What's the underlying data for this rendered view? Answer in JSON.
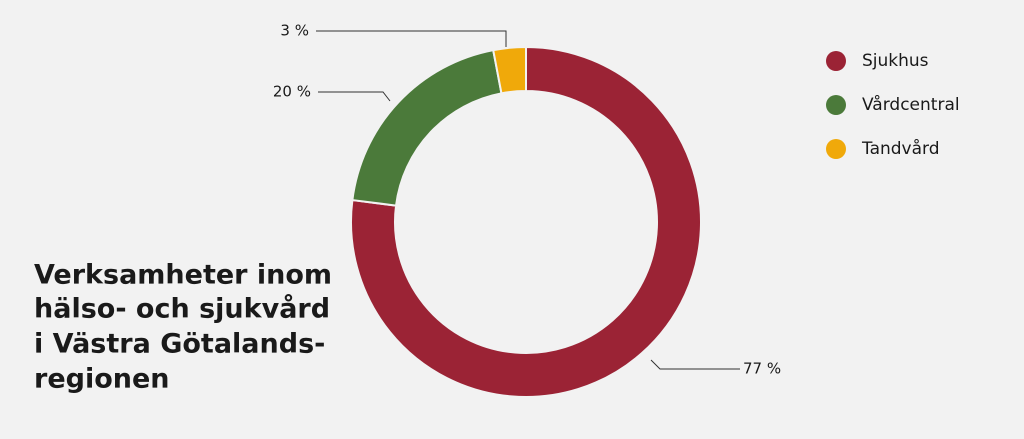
{
  "chart_data": {
    "type": "donut",
    "title": [
      "Verksamheter inom",
      "hälso- och sjukvård",
      "i Västra Götalands-",
      "regionen"
    ],
    "categories": [
      "Sjukhus",
      "Vårdcentral",
      "Tandvård"
    ],
    "values": [
      77,
      20,
      3
    ],
    "value_labels": [
      "77 %",
      "20 %",
      "3 %"
    ],
    "colors": [
      "#9b2335",
      "#4b7a3a",
      "#f0a90a"
    ],
    "legend": "top-right"
  }
}
